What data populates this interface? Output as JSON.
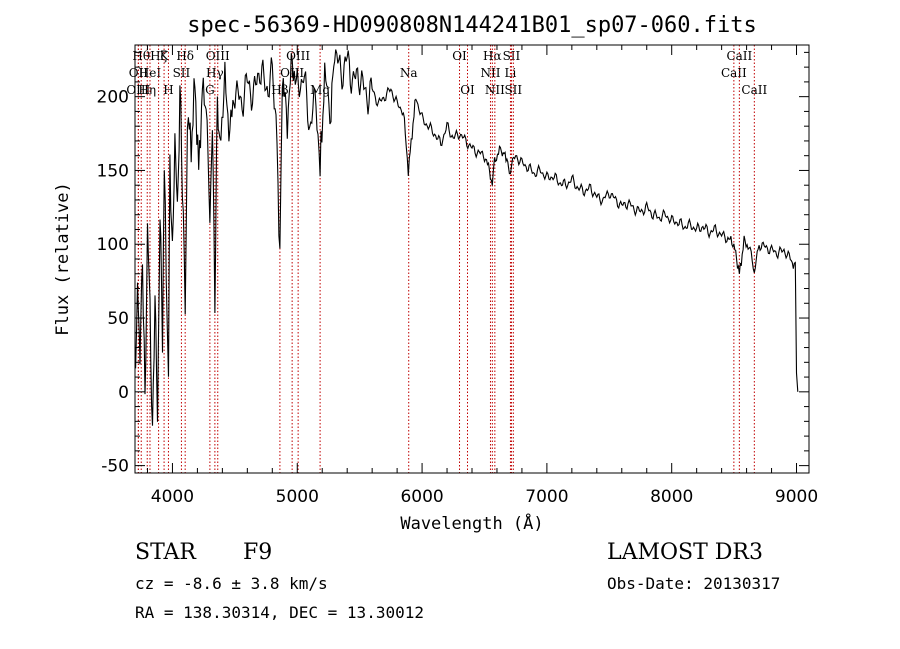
{
  "chart_data": {
    "type": "line",
    "title": "spec-56369-HD090808N144241B01_sp07-060.fits",
    "xlabel": "Wavelength (Å)",
    "ylabel": "Flux (relative)",
    "xlim": [
      3700,
      9100
    ],
    "ylim": [
      -55,
      235
    ],
    "xticks": [
      4000,
      5000,
      6000,
      7000,
      8000,
      9000
    ],
    "yticks": [
      -50,
      0,
      50,
      100,
      150,
      200
    ],
    "series": [
      {
        "name": "flux",
        "x": [
          3705,
          3720,
          3740,
          3760,
          3780,
          3800,
          3820,
          3840,
          3860,
          3880,
          3900,
          3920,
          3935,
          3950,
          3968,
          3980,
          4000,
          4020,
          4040,
          4060,
          4080,
          4102,
          4120,
          4150,
          4180,
          4210,
          4240,
          4270,
          4300,
          4320,
          4340,
          4360,
          4380,
          4420,
          4460,
          4500,
          4550,
          4600,
          4650,
          4700,
          4750,
          4800,
          4830,
          4861,
          4880,
          4920,
          4960,
          5000,
          5050,
          5100,
          5150,
          5183,
          5220,
          5270,
          5300,
          5350,
          5400,
          5450,
          5500,
          5550,
          5600,
          5650,
          5700,
          5750,
          5800,
          5850,
          5890,
          5950,
          6000,
          6050,
          6100,
          6150,
          6200,
          6250,
          6300,
          6350,
          6400,
          6450,
          6500,
          6540,
          6563,
          6580,
          6620,
          6680,
          6700,
          6750,
          6800,
          6850,
          6900,
          6950,
          7000,
          7050,
          7100,
          7150,
          7200,
          7250,
          7300,
          7350,
          7400,
          7450,
          7500,
          7550,
          7600,
          7650,
          7700,
          7750,
          7800,
          7850,
          7900,
          7950,
          8000,
          8050,
          8100,
          8150,
          8200,
          8250,
          8300,
          8350,
          8400,
          8450,
          8498,
          8542,
          8580,
          8620,
          8662,
          8700,
          8750,
          8800,
          8850,
          8900,
          8950,
          8990,
          9000,
          9010
        ],
        "values": [
          10,
          80,
          20,
          95,
          -10,
          110,
          60,
          -35,
          70,
          -20,
          120,
          40,
          150,
          85,
          20,
          160,
          90,
          175,
          120,
          205,
          140,
          60,
          190,
          165,
          210,
          150,
          205,
          195,
          120,
          180,
          65,
          195,
          170,
          210,
          175,
          205,
          195,
          210,
          200,
          220,
          205,
          215,
          185,
          95,
          210,
          185,
          225,
          205,
          215,
          180,
          200,
          150,
          215,
          190,
          232,
          215,
          225,
          210,
          215,
          200,
          205,
          195,
          200,
          205,
          195,
          190,
          150,
          200,
          185,
          180,
          175,
          168,
          180,
          172,
          175,
          170,
          165,
          162,
          160,
          150,
          140,
          155,
          165,
          158,
          150,
          160,
          155,
          152,
          148,
          150,
          145,
          146,
          142,
          140,
          144,
          138,
          136,
          138,
          132,
          130,
          135,
          130,
          126,
          128,
          124,
          122,
          125,
          120,
          118,
          120,
          116,
          115,
          112,
          113,
          110,
          112,
          108,
          110,
          106,
          104,
          100,
          80,
          102,
          98,
          82,
          100,
          98,
          96,
          94,
          96,
          90,
          85,
          10,
          0
        ]
      }
    ],
    "lines": [
      {
        "w": 3750,
        "label": "Hθ",
        "row": 0
      },
      {
        "w": 3727,
        "label": "OII",
        "row": 1
      },
      {
        "w": 3727,
        "label": "OIII",
        "row": 2
      },
      {
        "w": 3798,
        "label": "Hη",
        "row": 2
      },
      {
        "w": 3820,
        "label": "HeI",
        "row": 1
      },
      {
        "w": 3889,
        "label": "Hζ",
        "row": 0
      },
      {
        "w": 3933,
        "label": "K",
        "row": 0
      },
      {
        "w": 3968,
        "label": "H",
        "row": 2
      },
      {
        "w": 4072,
        "label": "SII",
        "row": 1
      },
      {
        "w": 4102,
        "label": "Hδ",
        "row": 0
      },
      {
        "w": 4300,
        "label": "G",
        "row": 2
      },
      {
        "w": 4340,
        "label": "Hγ",
        "row": 1
      },
      {
        "w": 4363,
        "label": "OIII",
        "row": 0
      },
      {
        "w": 4861,
        "label": "Hβ",
        "row": 2
      },
      {
        "w": 4959,
        "label": "OIII",
        "row": 1
      },
      {
        "w": 5007,
        "label": "OIII",
        "row": 0
      },
      {
        "w": 5183,
        "label": "Mg",
        "row": 2
      },
      {
        "w": 5893,
        "label": "Na",
        "row": 1
      },
      {
        "w": 6300,
        "label": "OI",
        "row": 0
      },
      {
        "w": 6364,
        "label": "OI",
        "row": 2
      },
      {
        "w": 6548,
        "label": "NII",
        "row": 1
      },
      {
        "w": 6563,
        "label": "Hα",
        "row": 0
      },
      {
        "w": 6583,
        "label": "NII",
        "row": 2
      },
      {
        "w": 6708,
        "label": "Li",
        "row": 1
      },
      {
        "w": 6716,
        "label": "SII",
        "row": 0
      },
      {
        "w": 6731,
        "label": "SII",
        "row": 2
      },
      {
        "w": 8498,
        "label": "CaII",
        "row": 1
      },
      {
        "w": 8542,
        "label": "CaII",
        "row": 0
      },
      {
        "w": 8662,
        "label": "CaII",
        "row": 2
      }
    ]
  },
  "info": {
    "class": "STAR",
    "subclass": "F9",
    "cz": "cz = -8.6 ± 3.8 km/s",
    "coords": "RA = 138.30314, DEC =  13.30012",
    "survey": "LAMOST DR3",
    "obs_date": "Obs-Date: 20130317"
  }
}
